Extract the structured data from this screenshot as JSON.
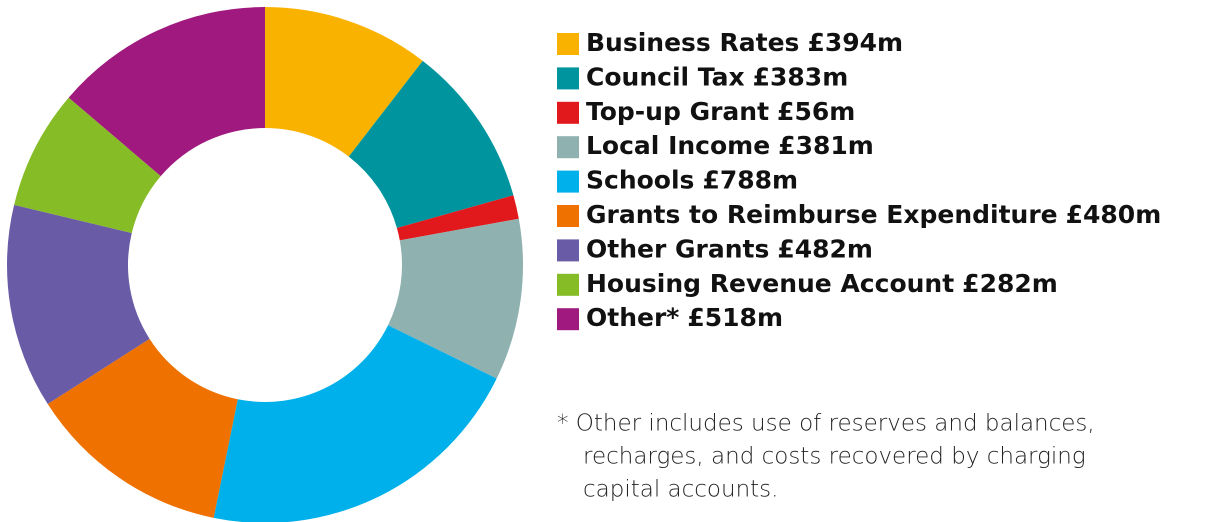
{
  "chart_data": {
    "type": "donut",
    "categories": [
      "Business Rates",
      "Council Tax",
      "Top-up Grant",
      "Local Income",
      "Schools",
      "Grants to Reimburse Expenditure",
      "Other Grants",
      "Housing Revenue Account",
      "Other*"
    ],
    "values": [
      394,
      383,
      56,
      381,
      788,
      480,
      482,
      282,
      518
    ],
    "value_labels": [
      "£394m",
      "£383m",
      "£56m",
      "£381m",
      "£788m",
      "£480m",
      "£482m",
      "£282m",
      "£518m"
    ],
    "colors": [
      "#f9b200",
      "#00959e",
      "#e2191c",
      "#8fb1b0",
      "#00b0ea",
      "#ef7100",
      "#6a5ba6",
      "#86bc25",
      "#a0197f"
    ],
    "note": [
      "* Other includes use of reserves and balances,",
      "recharges, and costs recovered by charging",
      "capital accounts."
    ]
  }
}
